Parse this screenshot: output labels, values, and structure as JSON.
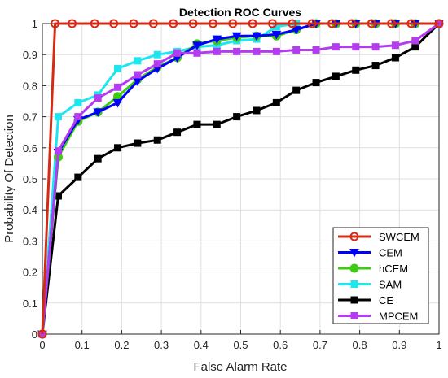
{
  "chart_data": {
    "type": "line",
    "title": "Detection ROC Curves",
    "xlabel": "False Alarm Rate",
    "ylabel": "Probability Of Detection",
    "xlim": [
      0,
      1
    ],
    "ylim": [
      0,
      1
    ],
    "xticks": [
      "0",
      "0.1",
      "0.2",
      "0.3",
      "0.4",
      "0.5",
      "0.6",
      "0.7",
      "0.8",
      "0.9",
      "1"
    ],
    "yticks": [
      "0",
      "0.1",
      "0.2",
      "0.3",
      "0.4",
      "0.5",
      "0.6",
      "0.7",
      "0.8",
      "0.9",
      "1"
    ],
    "grid": true,
    "legend_position": "bottom-right",
    "series": [
      {
        "name": "SWCEM",
        "color": "#D62A12",
        "marker": "circle",
        "x": [
          0,
          0.032,
          0.075,
          0.132,
          0.18,
          0.23,
          0.28,
          0.33,
          0.38,
          0.43,
          0.48,
          0.53,
          0.58,
          0.63,
          0.68,
          0.73,
          0.78,
          0.83,
          0.88,
          0.93,
          1.0
        ],
        "y": [
          0,
          1,
          1,
          1,
          1,
          1,
          1,
          1,
          1,
          1,
          1,
          1,
          1,
          1,
          1,
          1,
          1,
          1,
          1,
          1,
          1
        ]
      },
      {
        "name": "CEM",
        "color": "#0000FF",
        "marker": "triangle-down",
        "x": [
          0,
          0.04,
          0.09,
          0.14,
          0.19,
          0.24,
          0.29,
          0.34,
          0.39,
          0.44,
          0.49,
          0.54,
          0.59,
          0.64,
          0.69,
          0.74,
          0.79,
          0.84,
          0.89,
          0.94,
          1.0
        ],
        "y": [
          0,
          0.585,
          0.69,
          0.715,
          0.745,
          0.815,
          0.855,
          0.89,
          0.93,
          0.95,
          0.96,
          0.96,
          0.965,
          0.98,
          1,
          1,
          1,
          1,
          1,
          1,
          1
        ]
      },
      {
        "name": "hCEM",
        "color": "#3ECC12",
        "marker": "circle",
        "x": [
          0,
          0.04,
          0.09,
          0.14,
          0.19,
          0.24,
          0.29,
          0.34,
          0.39,
          0.44,
          0.49,
          0.54,
          0.59,
          0.64,
          0.69,
          0.74,
          0.79,
          0.84,
          0.89,
          0.94,
          1.0
        ],
        "y": [
          0,
          0.57,
          0.685,
          0.715,
          0.765,
          0.82,
          0.86,
          0.89,
          0.935,
          0.945,
          0.955,
          0.96,
          0.96,
          0.98,
          1,
          1,
          1,
          1,
          1,
          1,
          1
        ]
      },
      {
        "name": "SAM",
        "color": "#1EE6F0",
        "marker": "square",
        "x": [
          0,
          0.04,
          0.09,
          0.14,
          0.19,
          0.24,
          0.29,
          0.34,
          0.39,
          0.44,
          0.49,
          0.54,
          0.59,
          0.64,
          0.69,
          0.74,
          0.79,
          0.84,
          0.89,
          0.94,
          1.0
        ],
        "y": [
          0,
          0.7,
          0.745,
          0.77,
          0.855,
          0.88,
          0.9,
          0.91,
          0.925,
          0.93,
          0.945,
          0.95,
          0.99,
          1,
          1,
          1,
          1,
          1,
          1,
          1,
          1
        ]
      },
      {
        "name": "CE",
        "color": "#000000",
        "marker": "square",
        "x": [
          0,
          0.04,
          0.09,
          0.14,
          0.19,
          0.24,
          0.29,
          0.34,
          0.39,
          0.44,
          0.49,
          0.54,
          0.59,
          0.64,
          0.69,
          0.74,
          0.79,
          0.84,
          0.89,
          0.94,
          1.0
        ],
        "y": [
          0,
          0.445,
          0.505,
          0.565,
          0.6,
          0.615,
          0.625,
          0.65,
          0.675,
          0.675,
          0.7,
          0.72,
          0.745,
          0.785,
          0.81,
          0.83,
          0.85,
          0.865,
          0.89,
          0.925,
          1
        ]
      },
      {
        "name": "MPCEM",
        "color": "#B43CF0",
        "marker": "square",
        "x": [
          0,
          0.04,
          0.09,
          0.14,
          0.19,
          0.24,
          0.29,
          0.34,
          0.39,
          0.44,
          0.49,
          0.54,
          0.59,
          0.64,
          0.69,
          0.74,
          0.79,
          0.84,
          0.89,
          0.94,
          1.0
        ],
        "y": [
          0,
          0.59,
          0.7,
          0.76,
          0.795,
          0.835,
          0.87,
          0.905,
          0.905,
          0.91,
          0.91,
          0.91,
          0.91,
          0.915,
          0.915,
          0.925,
          0.925,
          0.925,
          0.93,
          0.945,
          1
        ]
      }
    ]
  }
}
